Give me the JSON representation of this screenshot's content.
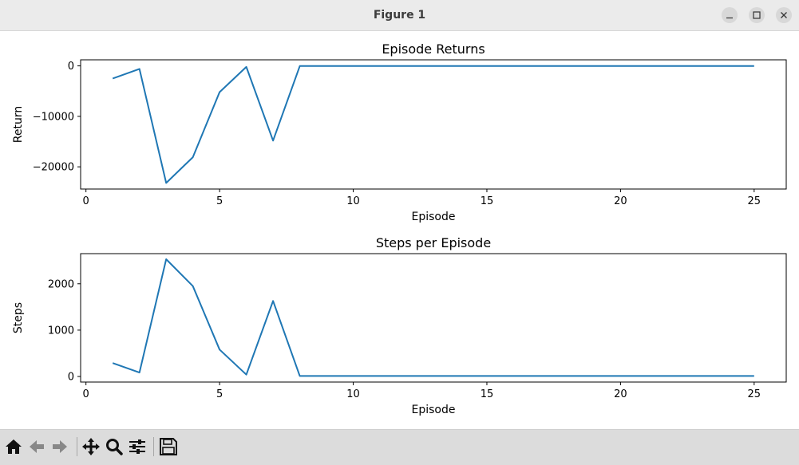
{
  "window": {
    "title": "Figure 1",
    "controls": [
      "minimize-icon",
      "maximize-icon",
      "close-icon"
    ]
  },
  "toolbar": {
    "buttons": [
      "home-icon",
      "back-icon",
      "forward-icon",
      "pan-icon",
      "zoom-icon",
      "configure-subplots-icon",
      "save-icon"
    ]
  },
  "colors": {
    "series": "#1f77b4",
    "titlebar": "#ebebeb",
    "toolbar": "#dcdcdc"
  },
  "chart_data": [
    {
      "type": "line",
      "title": "Episode Returns",
      "xlabel": "Episode",
      "ylabel": "Return",
      "x": [
        1,
        2,
        3,
        4,
        5,
        6,
        7,
        8,
        9,
        10,
        11,
        12,
        13,
        14,
        15,
        16,
        17,
        18,
        19,
        20,
        21,
        22,
        23,
        24,
        25
      ],
      "values": [
        -2500,
        -600,
        -23200,
        -18100,
        -5200,
        -200,
        -14800,
        -40,
        -40,
        -40,
        -40,
        -40,
        -40,
        -40,
        -40,
        -40,
        -40,
        -40,
        -40,
        -40,
        -40,
        -40,
        -40,
        -40,
        -40
      ],
      "xlim": [
        -0.2,
        26.2
      ],
      "ylim": [
        -24400,
        1200
      ],
      "xticks": [
        0,
        5,
        10,
        15,
        20,
        25
      ],
      "yticks": [
        0,
        -10000,
        -20000
      ],
      "xtick_labels": [
        "0",
        "5",
        "10",
        "15",
        "20",
        "25"
      ],
      "ytick_labels": [
        "0",
        "−10000",
        "−20000"
      ],
      "grid": false
    },
    {
      "type": "line",
      "title": "Steps per Episode",
      "xlabel": "Episode",
      "ylabel": "Steps",
      "x": [
        1,
        2,
        3,
        4,
        5,
        6,
        7,
        8,
        9,
        10,
        11,
        12,
        13,
        14,
        15,
        16,
        17,
        18,
        19,
        20,
        21,
        22,
        23,
        24,
        25
      ],
      "values": [
        290,
        85,
        2530,
        1950,
        580,
        40,
        1630,
        10,
        10,
        10,
        10,
        10,
        10,
        10,
        10,
        10,
        10,
        10,
        10,
        10,
        10,
        10,
        10,
        10,
        10
      ],
      "xlim": [
        -0.2,
        26.2
      ],
      "ylim": [
        -120,
        2650
      ],
      "xticks": [
        0,
        5,
        10,
        15,
        20,
        25
      ],
      "yticks": [
        0,
        1000,
        2000
      ],
      "xtick_labels": [
        "0",
        "5",
        "10",
        "15",
        "20",
        "25"
      ],
      "ytick_labels": [
        "0",
        "1000",
        "2000"
      ],
      "grid": false
    }
  ]
}
